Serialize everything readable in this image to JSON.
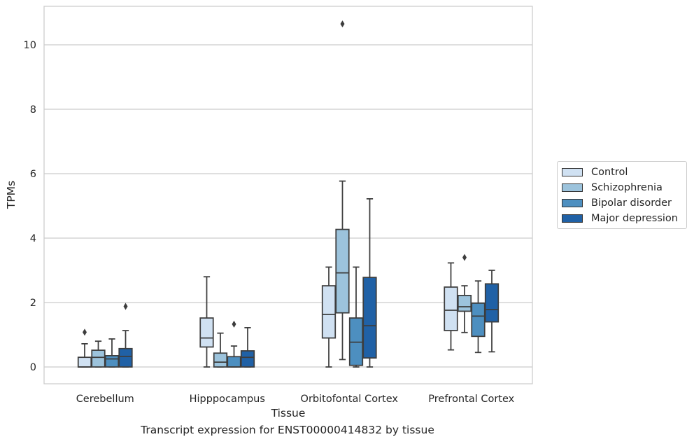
{
  "caption": "Transcript expression for ENST00000414832 by tissue",
  "chart_data": {
    "type": "box",
    "xlabel": "Tissue",
    "ylabel": "TPMs",
    "ylim": [
      -0.5,
      11.2
    ],
    "yticks": [
      0,
      2,
      4,
      6,
      8,
      10
    ],
    "grid": "horizontal",
    "legend_position": "right",
    "categories": [
      "Cerebellum",
      "Hipppocampus",
      "Orbitofontal Cortex",
      "Prefrontal Cortex"
    ],
    "series": [
      {
        "name": "Control",
        "color": "#d0e1f2",
        "boxes": [
          {
            "whislo": 0,
            "q1": 0,
            "med": 0,
            "q3": 0.3,
            "whishi": 0.72,
            "fliers": [
              1.08
            ]
          },
          {
            "whislo": 0,
            "q1": 0.62,
            "med": 0.9,
            "q3": 1.52,
            "whishi": 2.8,
            "fliers": []
          },
          {
            "whislo": 0,
            "q1": 0.9,
            "med": 1.63,
            "q3": 2.52,
            "whishi": 3.1,
            "fliers": []
          },
          {
            "whislo": 0.53,
            "q1": 1.13,
            "med": 1.76,
            "q3": 2.48,
            "whishi": 3.23,
            "fliers": []
          }
        ]
      },
      {
        "name": "Schizophrenia",
        "color": "#9cc3dc",
        "boxes": [
          {
            "whislo": 0,
            "q1": 0,
            "med": 0.3,
            "q3": 0.52,
            "whishi": 0.8,
            "fliers": []
          },
          {
            "whislo": 0,
            "q1": 0,
            "med": 0.15,
            "q3": 0.43,
            "whishi": 1.05,
            "fliers": []
          },
          {
            "whislo": 0.23,
            "q1": 1.68,
            "med": 2.92,
            "q3": 4.27,
            "whishi": 5.77,
            "fliers": [
              10.65
            ]
          },
          {
            "whislo": 1.07,
            "q1": 1.73,
            "med": 1.87,
            "q3": 2.22,
            "whishi": 2.52,
            "fliers": [
              3.4
            ]
          }
        ]
      },
      {
        "name": "Bipolar disorder",
        "color": "#4d8fc0",
        "boxes": [
          {
            "whislo": 0,
            "q1": 0,
            "med": 0.25,
            "q3": 0.35,
            "whishi": 0.87,
            "fliers": []
          },
          {
            "whislo": 0,
            "q1": 0,
            "med": 0,
            "q3": 0.32,
            "whishi": 0.65,
            "fliers": [
              1.33
            ]
          },
          {
            "whislo": 0,
            "q1": 0.05,
            "med": 0.77,
            "q3": 1.52,
            "whishi": 3.1,
            "fliers": []
          },
          {
            "whislo": 0.45,
            "q1": 0.95,
            "med": 1.58,
            "q3": 1.98,
            "whishi": 2.67,
            "fliers": []
          }
        ]
      },
      {
        "name": "Major depression",
        "color": "#2061a6",
        "boxes": [
          {
            "whislo": 0,
            "q1": 0,
            "med": 0.33,
            "q3": 0.57,
            "whishi": 1.13,
            "fliers": [
              1.88
            ]
          },
          {
            "whislo": 0,
            "q1": 0,
            "med": 0.3,
            "q3": 0.5,
            "whishi": 1.22,
            "fliers": []
          },
          {
            "whislo": 0,
            "q1": 0.28,
            "med": 1.28,
            "q3": 2.78,
            "whishi": 5.22,
            "fliers": []
          },
          {
            "whislo": 0.47,
            "q1": 1.4,
            "med": 1.78,
            "q3": 2.58,
            "whishi": 3.0,
            "fliers": []
          }
        ]
      }
    ]
  }
}
